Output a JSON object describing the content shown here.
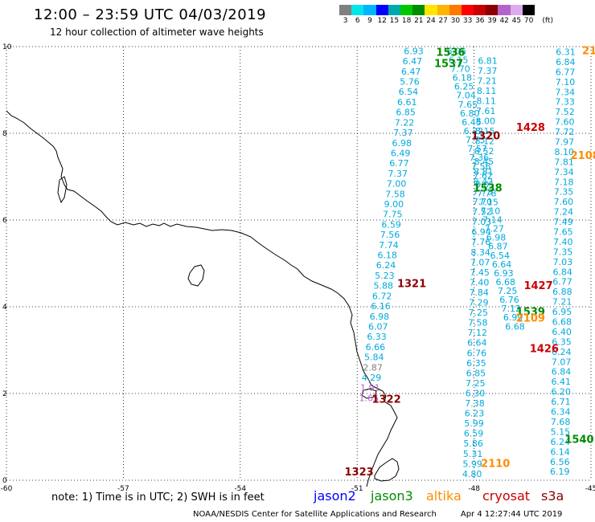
{
  "header": {
    "title": "12:00 – 23:59 UTC 04/03/2019",
    "subtitle": "12 hour collection of altimeter wave heights"
  },
  "scale": {
    "unit": "(ft)",
    "colors": [
      "#808080",
      "#00e6e6",
      "#00b4ff",
      "#0000ff",
      "#00aaaa",
      "#00c800",
      "#008c00",
      "#ffe600",
      "#ffb400",
      "#ff7800",
      "#ff0000",
      "#c80000",
      "#8c0000",
      "#b464c8",
      "#dcaaf0",
      "#000000"
    ],
    "ticks": [
      "3",
      "6",
      "9",
      "12",
      "15",
      "18",
      "21",
      "24",
      "27",
      "30",
      "33",
      "36",
      "39",
      "42",
      "45",
      "70"
    ]
  },
  "axes": {
    "x_ticks": [
      "-60",
      "-57",
      "-54",
      "-51",
      "-48",
      "-45"
    ],
    "y_ticks": [
      "0",
      "2",
      "4",
      "6",
      "8",
      "10"
    ]
  },
  "colors": {
    "jason2": "#0000ff",
    "jason3": "#008c00",
    "altika": "#ff8c00",
    "cryosat": "#cc0000",
    "s3a": "#8c0000",
    "swh": "#00aadd"
  },
  "legend": {
    "note": "note: 1) Time is in UTC; 2) SWH is in feet",
    "jason2": "jason2",
    "jason3": "jason3",
    "altika": "altika",
    "cryosat": "cryosat",
    "s3a": "s3a"
  },
  "footer": {
    "credit": "NOAA/NESDIS Center for Satellite Applications and Research",
    "timestamp": "Apr  4 12:27:44 UTC 2019"
  },
  "passes": [
    {
      "label": "1536",
      "sat": "jason3",
      "lon": -48.6,
      "lat": 9.88
    },
    {
      "label": "1537",
      "sat": "jason3",
      "lon": -48.65,
      "lat": 9.62
    },
    {
      "label": "1320",
      "sat": "s3a",
      "lon": -47.7,
      "lat": 7.95
    },
    {
      "label": "1428",
      "sat": "cryosat",
      "lon": -46.55,
      "lat": 8.15
    },
    {
      "label": "2108",
      "sat": "altika",
      "lon": -45.15,
      "lat": 7.5
    },
    {
      "label": "1538",
      "sat": "jason3",
      "lon": -47.65,
      "lat": 6.75
    },
    {
      "label": "1321",
      "sat": "s3a",
      "lon": -49.6,
      "lat": 4.55
    },
    {
      "label": "1427",
      "sat": "cryosat",
      "lon": -46.35,
      "lat": 4.5
    },
    {
      "label": "1539",
      "sat": "jason3",
      "lon": -46.55,
      "lat": 3.9
    },
    {
      "label": "2109",
      "sat": "altika",
      "lon": -46.55,
      "lat": 3.75
    },
    {
      "label": "1426",
      "sat": "cryosat",
      "lon": -46.2,
      "lat": 3.05
    },
    {
      "label": "1322",
      "sat": "s3a",
      "lon": -50.25,
      "lat": 1.88
    },
    {
      "label": "1540",
      "sat": "jason3",
      "lon": -45.3,
      "lat": 0.95
    },
    {
      "label": "2110",
      "sat": "altika",
      "lon": -47.45,
      "lat": 0.4
    },
    {
      "label": "1323",
      "sat": "s3a",
      "lon": -50.95,
      "lat": 0.2
    },
    {
      "label": "21",
      "sat": "altika",
      "lon": -45.04,
      "lat": 9.92
    }
  ],
  "swh_tracks": [
    {
      "values": [
        "6.93",
        "6.47",
        "6.47",
        "5.76",
        "6.54",
        "6.61",
        "6.85",
        "7.22",
        "7.37",
        "6.98",
        "6.49",
        "6.77",
        "7.37",
        "7.00",
        "7.58",
        "9.00",
        "7.75",
        "6.59",
        "7.56",
        "7.74",
        "6.18",
        "6.24",
        "5.23",
        "5.88",
        "6.72",
        "6.16",
        "6.98",
        "6.07",
        "6.33",
        "6.66",
        "5.84",
        "2.87",
        "4.29",
        "1.91",
        "1.65"
      ],
      "start": [
        -49.55,
        9.9
      ],
      "end": [
        -50.7,
        1.9
      ],
      "fade_from": 31
    },
    {
      "values": [
        "6.06",
        "6.15",
        "7.70",
        "6.18",
        "6.25",
        "7.04",
        "7.65",
        "6.80",
        "6.45",
        "6.22",
        "7.73",
        "7.57",
        "7.36",
        "7.56",
        "7.62",
        "8.01",
        "7.78",
        "7.15",
        "7.10",
        "7.14",
        "7.27",
        "6.98",
        "6.87",
        "6.54",
        "6.64",
        "6.93",
        "6.68",
        "7.25",
        "6.76",
        "7.12",
        "6.99",
        "6.68"
      ],
      "start": [
        -48.45,
        9.9
      ],
      "end": [
        -46.95,
        3.55
      ]
    },
    {
      "values": [
        "6.81",
        "7.37",
        "7.21",
        "8.11",
        "8.11",
        "7.61",
        "8.00",
        "8.15",
        "8.12",
        "8.52",
        "8.45",
        "8.81",
        "8.42",
        "7.73",
        "7.70",
        "7.52",
        "7.03",
        "6.94",
        "7.76",
        "8.34",
        "7.07",
        "7.45",
        "7.40",
        "7.84",
        "7.29",
        "7.25",
        "7.58",
        "7.12",
        "6.64",
        "6.76",
        "6.35",
        "6.85",
        "7.25",
        "6.30",
        "7.38",
        "6.23",
        "5.99",
        "6.59",
        "5.86",
        "5.31",
        "5.99",
        "4.80"
      ],
      "start": [
        -47.65,
        9.68
      ],
      "end": [
        -48.05,
        0.15
      ]
    },
    {
      "values": [
        "6.31",
        "6.84",
        "6.77",
        "7.10",
        "7.34",
        "7.33",
        "7.52",
        "7.60",
        "7.72",
        "7.97",
        "8.10",
        "7.81",
        "7.34",
        "7.18",
        "7.35",
        "7.60",
        "7.24",
        "7.49",
        "7.65",
        "7.40",
        "7.35",
        "7.03",
        "6.84",
        "6.77",
        "6.88",
        "7.21",
        "6.95",
        "6.68",
        "6.40",
        "6.35",
        "6.24",
        "7.07",
        "6.84",
        "6.41",
        "6.20",
        "6.71",
        "6.34",
        "7.68",
        "5.15",
        "6.24",
        "6.14",
        "6.56",
        "6.19"
      ],
      "start": [
        -45.65,
        9.88
      ],
      "end": [
        -45.8,
        0.2
      ]
    }
  ]
}
